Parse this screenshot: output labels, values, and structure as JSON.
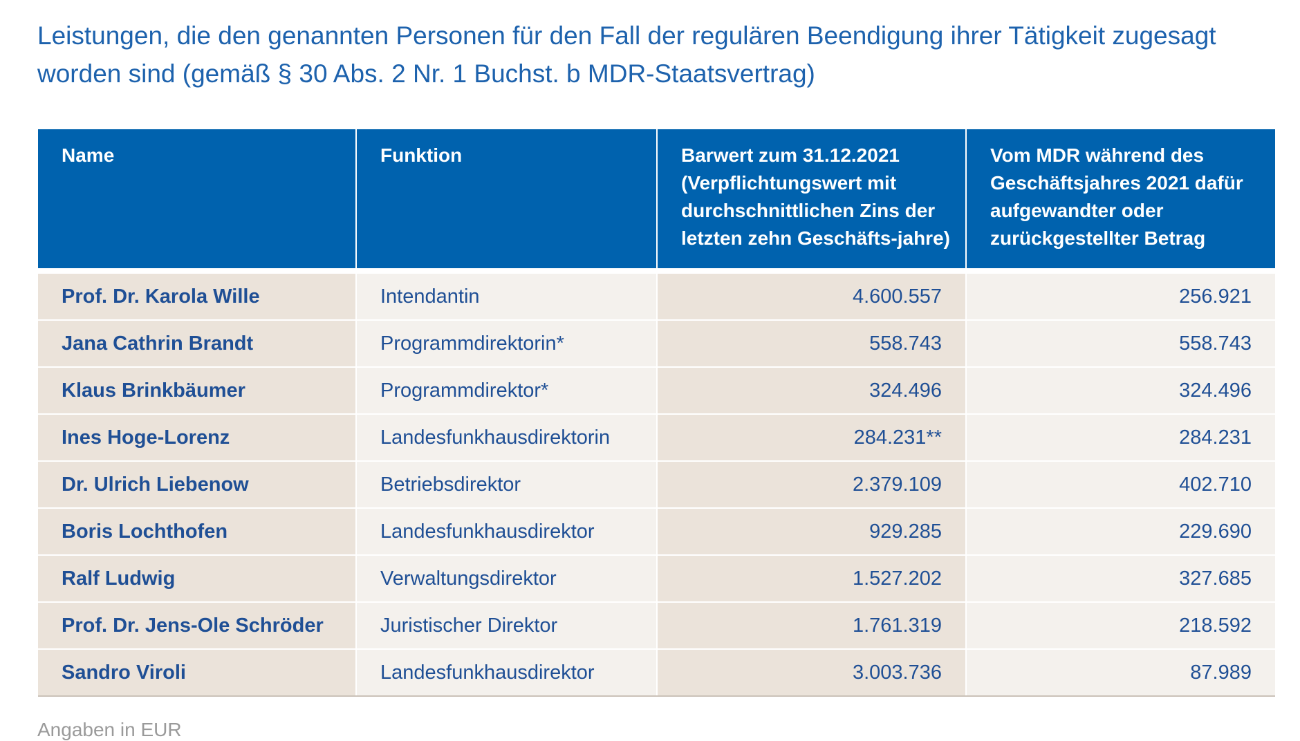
{
  "title": "Leistungen, die den genannten Personen für den Fall der regulären Beendigung ihrer Tätigkeit zugesagt worden sind (gemäß § 30 Abs. 2 Nr. 1 Buchst. b MDR-Staatsvertrag)",
  "table": {
    "header": [
      "Name",
      "Funktion",
      "Barwert zum 31.12.2021 (Verpflichtungswert mit durchschnittlichen Zins der letzten zehn Geschäfts-jahre)",
      "Vom MDR während des Geschäftsjahres 2021 dafür aufgewandter oder zurückgestellter Betrag"
    ],
    "rows": [
      [
        "Prof. Dr. Karola Wille",
        "Intendantin",
        "4.600.557",
        "256.921"
      ],
      [
        "Jana Cathrin Brandt",
        "Programmdirektorin*",
        "558.743",
        "558.743"
      ],
      [
        "Klaus Brinkbäumer",
        "Programmdirektor*",
        "324.496",
        "324.496"
      ],
      [
        "Ines Hoge-Lorenz",
        "Landesfunkhausdirektorin",
        "284.231**",
        "284.231"
      ],
      [
        "Dr. Ulrich Liebenow",
        "Betriebsdirektor",
        "2.379.109",
        "402.710"
      ],
      [
        "Boris Lochthofen",
        "Landesfunkhausdirektor",
        "929.285",
        "229.690"
      ],
      [
        "Ralf Ludwig",
        "Verwaltungsdirektor",
        "1.527.202",
        "327.685"
      ],
      [
        "Prof. Dr. Jens-Ole Schröder",
        "Juristischer Direktor",
        "1.761.319",
        "218.592"
      ],
      [
        "Sandro Viroli",
        "Landesfunkhausdirektor",
        "3.003.736",
        "87.989"
      ]
    ]
  },
  "footer": "Angaben in EUR"
}
